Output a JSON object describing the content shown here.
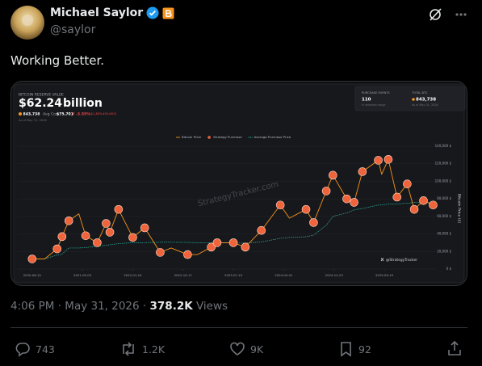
{
  "tweet": {
    "author_name": "Michael Saylor",
    "handle": "@saylor",
    "text": "Working Better.",
    "time": "4:06 PM",
    "separator": "·",
    "date": "May 31, 2026",
    "views": "378.2K",
    "views_label": "Views",
    "replies": "743",
    "reposts": "1.2K",
    "likes": "9K",
    "bookmarks": "92"
  },
  "chart_data": {
    "type": "line",
    "header": {
      "label": "BITCOIN RESERVE VALUE",
      "value": "$62.24",
      "unit": "billion",
      "btc": "843,738",
      "avg_cost_label": "Avg Cost:",
      "avg_cost": "$75,701",
      "change_pct": "-3.55%",
      "change_abs": "($1,839,455,603)",
      "as_of": "As of May 31, 2026"
    },
    "summary": {
      "events_label": "PURCHASE EVENTS",
      "events": "110",
      "events_note": "in selected range",
      "total_label": "TOTAL BTC",
      "total": "843,738",
      "total_note": "As of May 31, 2026"
    },
    "watermark": "StrategyTracker.com",
    "credit": "@StrategyTracker",
    "y_label": "Bitcoin Price ($)",
    "x": [
      "2020-08-10",
      "2020-10-15",
      "2020-12-20",
      "2021-01-15",
      "2021-02-20",
      "2021-04-14",
      "2021-05-20",
      "2021-07-20",
      "2021-09-05",
      "2021-09-25",
      "2021-11-10",
      "2022-01-24",
      "2022-03-28",
      "2022-06-18",
      "2022-08-15",
      "2022-11-10",
      "2023-01-01",
      "2023-03-15",
      "2023-04-15",
      "2023-07-10",
      "2023-09-11",
      "2023-12-05",
      "2024-03-14",
      "2024-05-01",
      "2024-07-28",
      "2024-09-06",
      "2024-11-12",
      "2024-12-17",
      "2025-02-28",
      "2025-04-08",
      "2025-05-22",
      "2025-08-14",
      "2025-09-01",
      "2025-10-06",
      "2025-11-21",
      "2026-01-14",
      "2026-02-20",
      "2026-04-10",
      "2026-05-31"
    ],
    "series": [
      {
        "name": "Bitcoin Price",
        "color": "#f7931a",
        "style": "line",
        "values": [
          11500,
          11500,
          23000,
          37000,
          55000,
          63000,
          38000,
          30000,
          52000,
          42000,
          68000,
          36000,
          47000,
          19000,
          24000,
          16500,
          16500,
          25000,
          30000,
          30000,
          25000,
          44000,
          73000,
          58000,
          68000,
          53000,
          89000,
          107000,
          80000,
          76000,
          111000,
          124000,
          108000,
          125000,
          82000,
          97000,
          68000,
          78000,
          73000
        ]
      },
      {
        "name": "Strategy Purchase",
        "color": "#f0643c",
        "style": "points",
        "values": [
          11500,
          null,
          23000,
          37000,
          55000,
          null,
          38000,
          30000,
          52000,
          42000,
          68000,
          36000,
          47000,
          19000,
          null,
          16500,
          null,
          25000,
          30000,
          30000,
          25000,
          44000,
          73000,
          null,
          68000,
          53000,
          89000,
          107000,
          80000,
          76000,
          111000,
          124000,
          null,
          125000,
          82000,
          97000,
          68000,
          78000,
          73000
        ]
      },
      {
        "name": "Average Purchase Price",
        "color": "#2bb5a0",
        "style": "dashed",
        "values": [
          11600,
          11600,
          16000,
          17000,
          24000,
          24000,
          24500,
          26000,
          27000,
          27700,
          29000,
          30000,
          30100,
          30600,
          30600,
          30400,
          30000,
          29800,
          29800,
          29700,
          29600,
          30900,
          35000,
          36000,
          36800,
          38600,
          49900,
          60000,
          64000,
          67500,
          69000,
          73000,
          73000,
          74000,
          74300,
          75000,
          75900,
          75700,
          75701
        ]
      }
    ],
    "xlim": [
      "2020-05-26",
      "2026-06-15"
    ],
    "xticks": [
      "2020-08-10",
      "2021-05-03",
      "2022-01-24",
      "2022-10-17",
      "2023-07-10",
      "2024-04-01",
      "2024-12-23",
      "2025-09-15"
    ],
    "ylim": [
      0,
      140000
    ],
    "yticks": [
      {
        "value": 0,
        "label": "0 $"
      },
      {
        "value": 20000,
        "label": "20,000 $"
      },
      {
        "value": 40000,
        "label": "40,000 $"
      },
      {
        "value": 60000,
        "label": "60,000 $"
      },
      {
        "value": 80000,
        "label": "80,000 $"
      },
      {
        "value": 100000,
        "label": "100,000 $"
      },
      {
        "value": 120000,
        "label": "120,000 $"
      },
      {
        "value": 140000,
        "label": "140,000 $"
      }
    ],
    "grid": true
  }
}
